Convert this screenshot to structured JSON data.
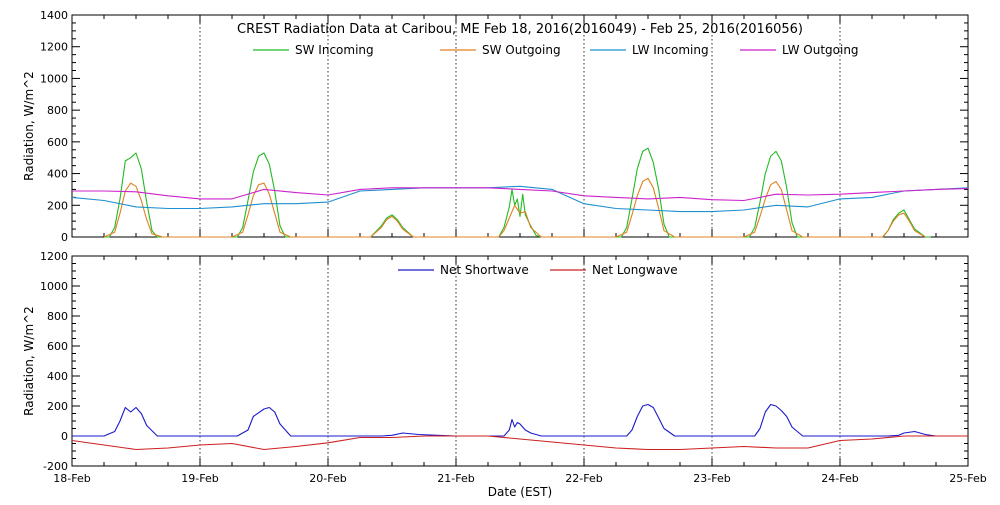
{
  "chart_data": [
    {
      "type": "line",
      "title": "CREST Radiation Data at Caribou, ME   Feb 18, 2016(2016049) - Feb 25, 2016(2016056)",
      "ylabel": "Radiation, W/m^2",
      "xlabel": "",
      "ylim": [
        0,
        1400
      ],
      "yticks": [
        0,
        200,
        400,
        600,
        800,
        1000,
        1200,
        1400
      ],
      "xlim": [
        "2016-02-18 00:00",
        "2016-02-25 00:00"
      ],
      "grid": true,
      "legend_position": "top",
      "series": [
        {
          "name": "SW Incoming",
          "color": "#22bb22",
          "x": [
            "2016-02-18 06:00",
            "2016-02-18 07:00",
            "2016-02-18 08:00",
            "2016-02-18 09:00",
            "2016-02-18 10:00",
            "2016-02-18 11:00",
            "2016-02-18 12:00",
            "2016-02-18 13:00",
            "2016-02-18 14:00",
            "2016-02-18 15:00",
            "2016-02-18 16:00",
            "2016-02-18 17:00",
            "2016-02-19 06:00",
            "2016-02-19 07:00",
            "2016-02-19 08:00",
            "2016-02-19 09:00",
            "2016-02-19 10:00",
            "2016-02-19 11:00",
            "2016-02-19 12:00",
            "2016-02-19 13:00",
            "2016-02-19 14:00",
            "2016-02-19 15:00",
            "2016-02-19 16:00",
            "2016-02-19 17:00",
            "2016-02-20 06:00",
            "2016-02-20 08:00",
            "2016-02-20 10:00",
            "2016-02-20 11:00",
            "2016-02-20 12:00",
            "2016-02-20 13:00",
            "2016-02-20 14:00",
            "2016-02-20 16:00",
            "2016-02-20 17:00",
            "2016-02-21 06:00",
            "2016-02-21 08:00",
            "2016-02-21 09:00",
            "2016-02-21 10:00",
            "2016-02-21 10:30",
            "2016-02-21 11:00",
            "2016-02-21 11:30",
            "2016-02-21 12:00",
            "2016-02-21 12:30",
            "2016-02-21 13:00",
            "2016-02-21 14:00",
            "2016-02-21 15:00",
            "2016-02-21 16:00",
            "2016-02-21 17:00",
            "2016-02-22 06:00",
            "2016-02-22 07:00",
            "2016-02-22 08:00",
            "2016-02-22 09:00",
            "2016-02-22 10:00",
            "2016-02-22 11:00",
            "2016-02-22 12:00",
            "2016-02-22 13:00",
            "2016-02-22 14:00",
            "2016-02-22 15:00",
            "2016-02-22 16:00",
            "2016-02-22 17:00",
            "2016-02-23 06:00",
            "2016-02-23 07:00",
            "2016-02-23 08:00",
            "2016-02-23 09:00",
            "2016-02-23 10:00",
            "2016-02-23 11:00",
            "2016-02-23 12:00",
            "2016-02-23 13:00",
            "2016-02-23 14:00",
            "2016-02-23 15:00",
            "2016-02-23 16:00",
            "2016-02-23 17:00",
            "2016-02-24 06:00",
            "2016-02-24 08:00",
            "2016-02-24 09:00",
            "2016-02-24 10:00",
            "2016-02-24 11:00",
            "2016-02-24 12:00",
            "2016-02-24 13:00",
            "2016-02-24 14:00",
            "2016-02-24 16:00",
            "2016-02-24 17:00"
          ],
          "y": [
            0,
            0,
            60,
            240,
            480,
            500,
            530,
            430,
            220,
            40,
            0,
            0,
            0,
            0,
            60,
            230,
            410,
            510,
            530,
            460,
            290,
            70,
            0,
            0,
            0,
            0,
            70,
            120,
            140,
            110,
            60,
            0,
            0,
            0,
            0,
            60,
            190,
            300,
            200,
            240,
            130,
            270,
            140,
            70,
            10,
            0,
            0,
            0,
            0,
            60,
            240,
            430,
            540,
            560,
            470,
            300,
            80,
            0,
            0,
            0,
            0,
            60,
            220,
            400,
            510,
            540,
            480,
            310,
            90,
            0,
            0,
            0,
            0,
            40,
            110,
            150,
            170,
            110,
            50,
            0,
            0
          ]
        },
        {
          "name": "SW Outgoing",
          "color": "#e08020",
          "x": [
            "2016-02-18 06:00",
            "2016-02-18 08:00",
            "2016-02-18 09:00",
            "2016-02-18 10:00",
            "2016-02-18 11:00",
            "2016-02-18 12:00",
            "2016-02-18 13:00",
            "2016-02-18 14:00",
            "2016-02-18 15:00",
            "2016-02-18 17:00",
            "2016-02-19 06:00",
            "2016-02-19 08:00",
            "2016-02-19 09:00",
            "2016-02-19 10:00",
            "2016-02-19 11:00",
            "2016-02-19 12:00",
            "2016-02-19 13:00",
            "2016-02-19 14:00",
            "2016-02-19 15:00",
            "2016-02-19 17:00",
            "2016-02-20 06:00",
            "2016-02-20 08:00",
            "2016-02-20 10:00",
            "2016-02-20 11:00",
            "2016-02-20 12:00",
            "2016-02-20 13:00",
            "2016-02-20 14:00",
            "2016-02-20 16:00",
            "2016-02-21 06:00",
            "2016-02-21 08:00",
            "2016-02-21 09:00",
            "2016-02-21 10:00",
            "2016-02-21 11:00",
            "2016-02-21 12:00",
            "2016-02-21 13:00",
            "2016-02-21 14:00",
            "2016-02-21 16:00",
            "2016-02-22 06:00",
            "2016-02-22 08:00",
            "2016-02-22 09:00",
            "2016-02-22 10:00",
            "2016-02-22 11:00",
            "2016-02-22 12:00",
            "2016-02-22 13:00",
            "2016-02-22 14:00",
            "2016-02-22 15:00",
            "2016-02-22 17:00",
            "2016-02-23 06:00",
            "2016-02-23 08:00",
            "2016-02-23 09:00",
            "2016-02-23 10:00",
            "2016-02-23 11:00",
            "2016-02-23 12:00",
            "2016-02-23 13:00",
            "2016-02-23 14:00",
            "2016-02-23 15:00",
            "2016-02-23 17:00",
            "2016-02-24 06:00",
            "2016-02-24 08:00",
            "2016-02-24 09:00",
            "2016-02-24 10:00",
            "2016-02-24 11:00",
            "2016-02-24 12:00",
            "2016-02-24 13:00",
            "2016-02-24 14:00",
            "2016-02-24 16:00"
          ],
          "y": [
            0,
            30,
            150,
            290,
            340,
            320,
            230,
            110,
            20,
            0,
            0,
            30,
            140,
            260,
            330,
            340,
            270,
            150,
            30,
            0,
            0,
            0,
            60,
            110,
            130,
            100,
            50,
            0,
            0,
            0,
            40,
            120,
            200,
            150,
            160,
            60,
            0,
            0,
            30,
            140,
            260,
            350,
            370,
            310,
            180,
            40,
            0,
            0,
            30,
            130,
            240,
            330,
            350,
            300,
            170,
            40,
            0,
            0,
            0,
            40,
            100,
            140,
            150,
            100,
            40,
            0
          ]
        },
        {
          "name": "LW Incoming",
          "color": "#1f8fcf",
          "x": [
            "2016-02-18 00:00",
            "2016-02-18 06:00",
            "2016-02-18 12:00",
            "2016-02-18 18:00",
            "2016-02-19 00:00",
            "2016-02-19 06:00",
            "2016-02-19 12:00",
            "2016-02-19 18:00",
            "2016-02-20 00:00",
            "2016-02-20 06:00",
            "2016-02-20 12:00",
            "2016-02-20 18:00",
            "2016-02-21 00:00",
            "2016-02-21 06:00",
            "2016-02-21 12:00",
            "2016-02-21 18:00",
            "2016-02-22 00:00",
            "2016-02-22 06:00",
            "2016-02-22 12:00",
            "2016-02-22 18:00",
            "2016-02-23 00:00",
            "2016-02-23 06:00",
            "2016-02-23 12:00",
            "2016-02-23 18:00",
            "2016-02-24 00:00",
            "2016-02-24 06:00",
            "2016-02-24 12:00",
            "2016-02-24 18:00",
            "2016-02-25 00:00"
          ],
          "y": [
            250,
            230,
            190,
            180,
            180,
            190,
            210,
            210,
            220,
            290,
            300,
            310,
            310,
            310,
            320,
            300,
            210,
            180,
            170,
            160,
            160,
            170,
            200,
            190,
            240,
            250,
            290,
            300,
            310
          ]
        },
        {
          "name": "LW Outgoing",
          "color": "#cc22cc",
          "x": [
            "2016-02-18 00:00",
            "2016-02-18 06:00",
            "2016-02-18 12:00",
            "2016-02-18 18:00",
            "2016-02-19 00:00",
            "2016-02-19 06:00",
            "2016-02-19 12:00",
            "2016-02-19 18:00",
            "2016-02-20 00:00",
            "2016-02-20 06:00",
            "2016-02-20 12:00",
            "2016-02-20 18:00",
            "2016-02-21 00:00",
            "2016-02-21 06:00",
            "2016-02-21 12:00",
            "2016-02-21 18:00",
            "2016-02-22 00:00",
            "2016-02-22 06:00",
            "2016-02-22 12:00",
            "2016-02-22 18:00",
            "2016-02-23 00:00",
            "2016-02-23 06:00",
            "2016-02-23 12:00",
            "2016-02-23 18:00",
            "2016-02-24 00:00",
            "2016-02-24 06:00",
            "2016-02-24 12:00",
            "2016-02-24 18:00",
            "2016-02-25 00:00"
          ],
          "y": [
            290,
            290,
            285,
            260,
            240,
            240,
            300,
            280,
            265,
            300,
            310,
            310,
            310,
            310,
            300,
            290,
            260,
            250,
            240,
            250,
            235,
            230,
            270,
            265,
            270,
            280,
            290,
            300,
            305
          ]
        }
      ]
    },
    {
      "type": "line",
      "title": "",
      "ylabel": "Radiation, W/m^2",
      "xlabel": "Date (EST)",
      "ylim": [
        -200,
        1200
      ],
      "yticks": [
        -200,
        0,
        200,
        400,
        600,
        800,
        1000,
        1200
      ],
      "xlim": [
        "2016-02-18 00:00",
        "2016-02-25 00:00"
      ],
      "categories": [
        "18-Feb",
        "19-Feb",
        "20-Feb",
        "21-Feb",
        "22-Feb",
        "23-Feb",
        "24-Feb",
        "25-Feb"
      ],
      "grid": true,
      "legend_position": "top",
      "series": [
        {
          "name": "Net Shortwave",
          "color": "#1a1acc",
          "x": [
            "2016-02-18 00:00",
            "2016-02-18 06:00",
            "2016-02-18 08:00",
            "2016-02-18 09:00",
            "2016-02-18 10:00",
            "2016-02-18 11:00",
            "2016-02-18 12:00",
            "2016-02-18 13:00",
            "2016-02-18 14:00",
            "2016-02-18 16:00",
            "2016-02-19 00:00",
            "2016-02-19 07:00",
            "2016-02-19 09:00",
            "2016-02-19 10:00",
            "2016-02-19 12:00",
            "2016-02-19 13:00",
            "2016-02-19 14:00",
            "2016-02-19 15:00",
            "2016-02-19 17:00",
            "2016-02-20 00:00",
            "2016-02-20 10:00",
            "2016-02-20 12:00",
            "2016-02-20 14:00",
            "2016-02-20 17:00",
            "2016-02-21 00:00",
            "2016-02-21 09:00",
            "2016-02-21 10:00",
            "2016-02-21 10:30",
            "2016-02-21 11:00",
            "2016-02-21 11:30",
            "2016-02-21 12:00",
            "2016-02-21 13:00",
            "2016-02-21 14:00",
            "2016-02-21 16:00",
            "2016-02-22 00:00",
            "2016-02-22 08:00",
            "2016-02-22 09:00",
            "2016-02-22 10:00",
            "2016-02-22 11:00",
            "2016-02-22 12:00",
            "2016-02-22 13:00",
            "2016-02-22 14:00",
            "2016-02-22 15:00",
            "2016-02-22 17:00",
            "2016-02-23 00:00",
            "2016-02-23 08:00",
            "2016-02-23 09:00",
            "2016-02-23 10:00",
            "2016-02-23 11:00",
            "2016-02-23 12:00",
            "2016-02-23 13:00",
            "2016-02-23 14:00",
            "2016-02-23 15:00",
            "2016-02-23 17:00",
            "2016-02-24 00:00",
            "2016-02-24 09:00",
            "2016-02-24 11:00",
            "2016-02-24 12:00",
            "2016-02-24 14:00",
            "2016-02-24 16:00",
            "2016-02-24 18:00",
            "2016-02-25 00:00"
          ],
          "y": [
            0,
            0,
            30,
            100,
            190,
            160,
            190,
            150,
            70,
            0,
            0,
            0,
            40,
            130,
            180,
            190,
            160,
            80,
            0,
            0,
            0,
            5,
            20,
            10,
            0,
            0,
            40,
            110,
            60,
            90,
            80,
            40,
            20,
            0,
            0,
            0,
            40,
            130,
            200,
            210,
            190,
            120,
            50,
            0,
            0,
            0,
            50,
            160,
            210,
            200,
            170,
            130,
            60,
            0,
            0,
            0,
            5,
            20,
            30,
            10,
            0,
            0
          ]
        },
        {
          "name": "Net Longwave",
          "color": "#cc2020",
          "x": [
            "2016-02-18 00:00",
            "2016-02-18 06:00",
            "2016-02-18 12:00",
            "2016-02-18 18:00",
            "2016-02-19 00:00",
            "2016-02-19 06:00",
            "2016-02-19 12:00",
            "2016-02-19 18:00",
            "2016-02-20 00:00",
            "2016-02-20 06:00",
            "2016-02-20 12:00",
            "2016-02-20 18:00",
            "2016-02-21 00:00",
            "2016-02-21 06:00",
            "2016-02-21 12:00",
            "2016-02-21 18:00",
            "2016-02-22 00:00",
            "2016-02-22 06:00",
            "2016-02-22 12:00",
            "2016-02-22 18:00",
            "2016-02-23 00:00",
            "2016-02-23 06:00",
            "2016-02-23 12:00",
            "2016-02-23 18:00",
            "2016-02-24 00:00",
            "2016-02-24 06:00",
            "2016-02-24 12:00",
            "2016-02-24 18:00",
            "2016-02-25 00:00"
          ],
          "y": [
            -30,
            -60,
            -90,
            -80,
            -60,
            -50,
            -90,
            -70,
            -45,
            -10,
            -10,
            0,
            0,
            0,
            -20,
            -40,
            -60,
            -80,
            -90,
            -90,
            -80,
            -70,
            -80,
            -80,
            -30,
            -20,
            0,
            0,
            0
          ]
        }
      ]
    }
  ]
}
